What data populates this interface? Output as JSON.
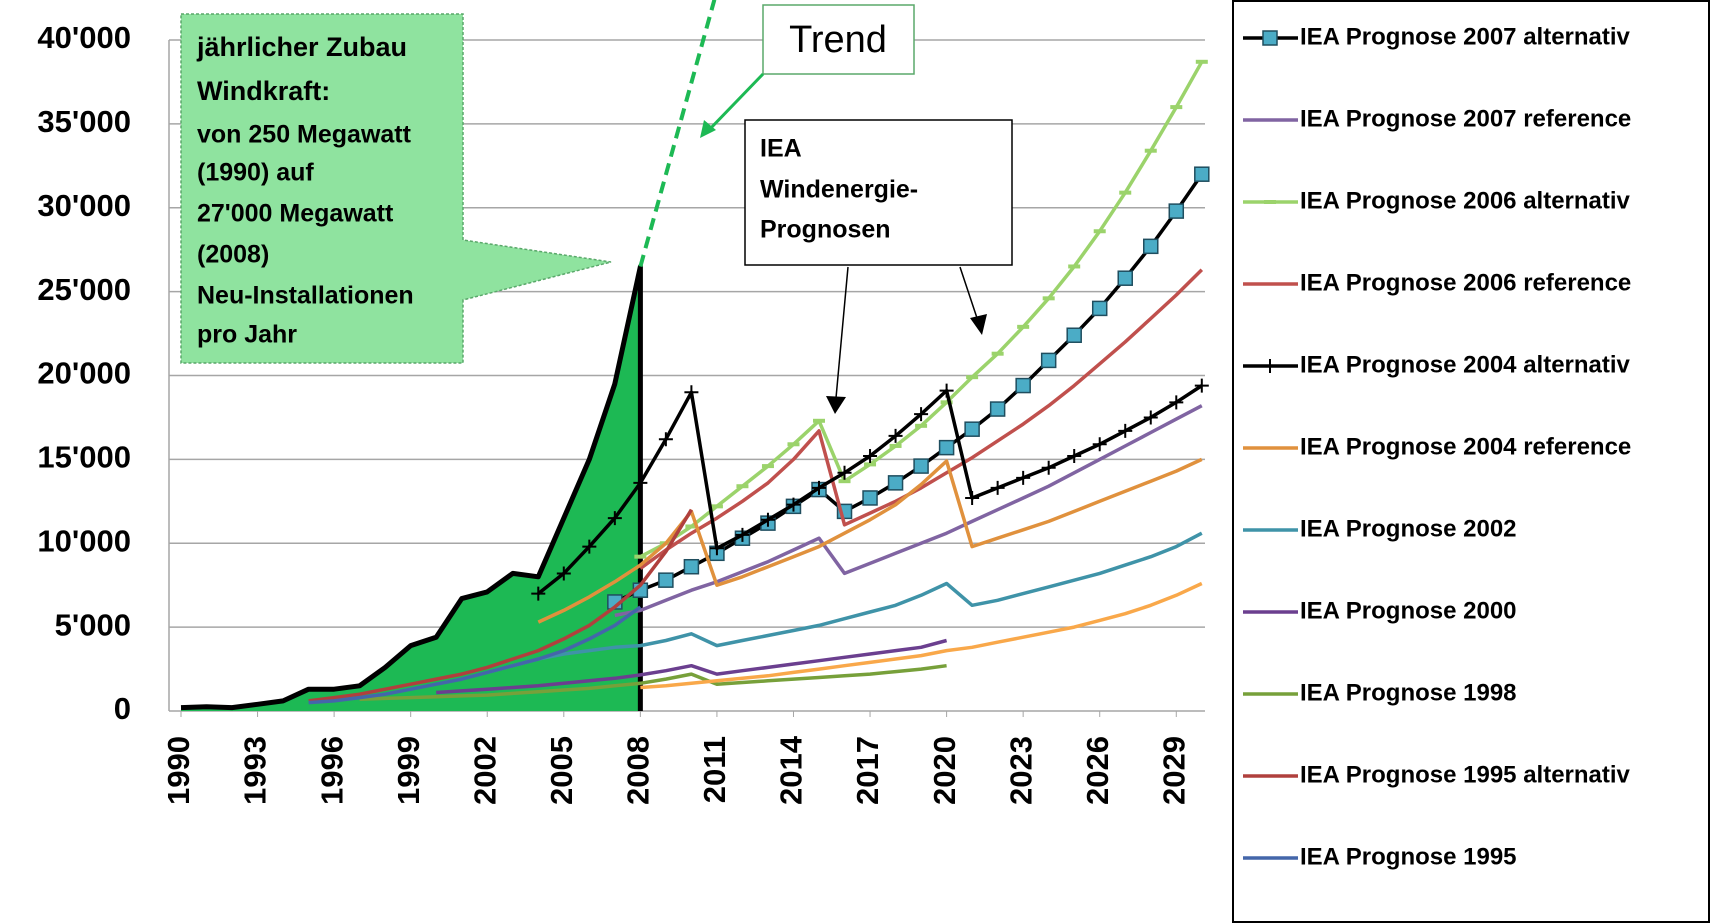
{
  "chart_data": {
    "type": "line",
    "xlim": [
      1990,
      2030.5
    ],
    "ylim": [
      0,
      40000
    ],
    "xticks": [
      1990,
      1993,
      1996,
      1999,
      2002,
      2005,
      2008,
      2011,
      2014,
      2017,
      2020,
      2023,
      2026,
      2029
    ],
    "yticks": [
      0,
      {
        "value": 5000,
        "label": "5'000"
      },
      {
        "value": 10000,
        "label": "10'000"
      },
      {
        "value": 15000,
        "label": "15'000"
      },
      {
        "value": 20000,
        "label": "20'000"
      },
      {
        "value": 25000,
        "label": "25'000"
      },
      {
        "value": 30000,
        "label": "30'000"
      },
      {
        "value": 35000,
        "label": "35'000"
      },
      {
        "value": 40000,
        "label": "40'000"
      }
    ],
    "grid": true,
    "legend": "right",
    "series": [
      {
        "name": "IEA Prognose 2007 alternativ",
        "color": "#000000",
        "marker": "square",
        "marker_color": "#4bacc6",
        "x": [
          2007,
          2008,
          2009,
          2010,
          2011,
          2012,
          2013,
          2014,
          2015,
          2016,
          2017,
          2018,
          2019,
          2020,
          2021,
          2022,
          2023,
          2024,
          2025,
          2026,
          2027,
          2028,
          2029,
          2030
        ],
        "values": [
          6500,
          7200,
          7800,
          8600,
          9400,
          10300,
          11200,
          12200,
          13200,
          11900,
          12700,
          13600,
          14600,
          15700,
          16800,
          18000,
          19400,
          20900,
          22400,
          24000,
          25800,
          27700,
          29800,
          32000
        ]
      },
      {
        "name": "IEA Prognose 2007 reference",
        "color": "#8064a2",
        "x": [
          2007,
          2008,
          2009,
          2010,
          2011,
          2012,
          2013,
          2014,
          2015,
          2016,
          2017,
          2018,
          2019,
          2020,
          2021,
          2022,
          2023,
          2024,
          2025,
          2026,
          2027,
          2028,
          2029,
          2030
        ],
        "values": [
          5700,
          6000,
          6600,
          7200,
          7700,
          8300,
          8900,
          9600,
          10300,
          8200,
          8800,
          9400,
          10000,
          10600,
          11300,
          12000,
          12700,
          13400,
          14200,
          15000,
          15800,
          16600,
          17400,
          18200
        ]
      },
      {
        "name": "IEA Prognose 2006 alternativ",
        "color": "#9bd36b",
        "marker": "dash",
        "x": [
          2008,
          2009,
          2010,
          2011,
          2012,
          2013,
          2014,
          2015,
          2016,
          2017,
          2018,
          2019,
          2020,
          2021,
          2022,
          2023,
          2024,
          2025,
          2026,
          2027,
          2028,
          2029,
          2030
        ],
        "values": [
          9200,
          10000,
          11000,
          12200,
          13400,
          14600,
          15900,
          17300,
          13700,
          14700,
          15800,
          17000,
          18400,
          19900,
          21300,
          22900,
          24600,
          26500,
          28600,
          30900,
          33400,
          36000,
          38700
        ]
      },
      {
        "name": "IEA Prognose 2006 reference",
        "color": "#c0504d",
        "x": [
          2008,
          2009,
          2010,
          2011,
          2012,
          2013,
          2014,
          2015,
          2016,
          2017,
          2018,
          2019,
          2020,
          2021,
          2022,
          2023,
          2024,
          2025,
          2026,
          2027,
          2028,
          2029,
          2030
        ],
        "values": [
          8500,
          9600,
          10600,
          11500,
          12500,
          13600,
          15000,
          16700,
          11100,
          11800,
          12500,
          13300,
          14200,
          15100,
          16100,
          17100,
          18200,
          19400,
          20700,
          22000,
          23400,
          24800,
          26300
        ]
      },
      {
        "name": "IEA Prognose 2004 alternativ",
        "color": "#000000",
        "marker": "plus",
        "x": [
          2004,
          2005,
          2006,
          2007,
          2008,
          2009,
          2010,
          2011,
          2012,
          2013,
          2014,
          2015,
          2016,
          2017,
          2018,
          2019,
          2020,
          2021,
          2022,
          2023,
          2024,
          2025,
          2026,
          2027,
          2028,
          2029,
          2030
        ],
        "values": [
          7000,
          8200,
          9800,
          11500,
          13600,
          16200,
          19000,
          9700,
          10500,
          11400,
          12300,
          13300,
          14200,
          15200,
          16400,
          17700,
          19100,
          12700,
          13300,
          13900,
          14500,
          15200,
          15900,
          16700,
          17500,
          18400,
          19400
        ]
      },
      {
        "name": "IEA Prognose 2004 reference",
        "color": "#e0913d",
        "x": [
          2004,
          2005,
          2006,
          2007,
          2008,
          2009,
          2010,
          2011,
          2012,
          2013,
          2014,
          2015,
          2016,
          2017,
          2018,
          2019,
          2020,
          2021,
          2022,
          2023,
          2024,
          2025,
          2026,
          2027,
          2028,
          2029,
          2030
        ],
        "values": [
          5300,
          6000,
          6800,
          7700,
          8700,
          10000,
          11900,
          7500,
          8000,
          8600,
          9200,
          9800,
          10600,
          11400,
          12300,
          13500,
          14900,
          9800,
          10300,
          10800,
          11300,
          11900,
          12500,
          13100,
          13700,
          14300,
          15000
        ]
      },
      {
        "name": "IEA Prognose 2002",
        "color": "#3f93a8",
        "x": [
          2002,
          2003,
          2004,
          2005,
          2006,
          2007,
          2008,
          2009,
          2010,
          2011,
          2012,
          2013,
          2014,
          2015,
          2016,
          2017,
          2018,
          2019,
          2020,
          2021,
          2022,
          2023,
          2024,
          2025,
          2026,
          2027,
          2028,
          2029,
          2030
        ],
        "values": [
          2300,
          2700,
          3100,
          3400,
          3600,
          3800,
          3900,
          4200,
          4600,
          3900,
          4200,
          4500,
          4800,
          5100,
          5500,
          5900,
          6300,
          6900,
          7600,
          6300,
          6600,
          7000,
          7400,
          7800,
          8200,
          8700,
          9200,
          9800,
          10600
        ]
      },
      {
        "name": "IEA Prognose 2000",
        "color": "#6b3f8f",
        "x": [
          2000,
          2001,
          2002,
          2003,
          2004,
          2005,
          2006,
          2007,
          2008,
          2009,
          2010,
          2011,
          2012,
          2013,
          2014,
          2015,
          2016,
          2017,
          2018,
          2019,
          2020
        ],
        "values": [
          1100,
          1200,
          1300,
          1400,
          1500,
          1650,
          1800,
          1950,
          2150,
          2400,
          2700,
          2200,
          2400,
          2600,
          2800,
          3000,
          3200,
          3400,
          3600,
          3800,
          4200
        ]
      },
      {
        "name": "IEA Prognose 1998",
        "color": "#77a03a",
        "x": [
          1997,
          1998,
          1999,
          2000,
          2001,
          2002,
          2003,
          2004,
          2005,
          2006,
          2007,
          2008,
          2009,
          2010,
          2011,
          2012,
          2013,
          2014,
          2015,
          2016,
          2017,
          2018,
          2019,
          2020
        ],
        "values": [
          700,
          750,
          800,
          850,
          900,
          950,
          1050,
          1150,
          1250,
          1350,
          1500,
          1650,
          1900,
          2200,
          1600,
          1700,
          1800,
          1900,
          2000,
          2100,
          2200,
          2350,
          2500,
          2700
        ]
      },
      {
        "name": "IEA Prognose 1995 alternativ",
        "color": "#b0403d",
        "x": [
          1995,
          1996,
          1997,
          1998,
          1999,
          2000,
          2001,
          2002,
          2003,
          2004,
          2005,
          2006,
          2007,
          2008,
          2009,
          2010
        ],
        "values": [
          600,
          800,
          1000,
          1300,
          1600,
          1900,
          2200,
          2600,
          3100,
          3600,
          4300,
          5100,
          6200,
          7500,
          9500,
          12000
        ]
      },
      {
        "name": "IEA Prognose 1995",
        "color": "#4466aa",
        "x": [
          1995,
          1996,
          1997,
          1998,
          1999,
          2000,
          2001,
          2002,
          2003,
          2004,
          2005,
          2006,
          2007,
          2008
        ],
        "values": [
          500,
          600,
          800,
          1000,
          1300,
          1600,
          1900,
          2300,
          2700,
          3100,
          3600,
          4300,
          5100,
          6200
        ]
      },
      {
        "color": "#f9a84a",
        "x": [
          2008,
          2009,
          2010,
          2011,
          2012,
          2013,
          2014,
          2015,
          2016,
          2017,
          2018,
          2019,
          2020,
          2021,
          2022,
          2023,
          2024,
          2025,
          2026,
          2027,
          2028,
          2029,
          2030
        ],
        "values": [
          1400,
          1500,
          1650,
          1800,
          1950,
          2100,
          2300,
          2500,
          2700,
          2900,
          3100,
          3300,
          3600,
          3800,
          4100,
          4400,
          4700,
          5000,
          5400,
          5800,
          6300,
          6900,
          7600
        ]
      },
      {
        "kind": "area",
        "color": "#1db954",
        "x": [
          1990,
          1991,
          1992,
          1993,
          1994,
          1995,
          1996,
          1997,
          1998,
          1999,
          2000,
          2001,
          2002,
          2003,
          2004,
          2005,
          2006,
          2007,
          2008
        ],
        "values": [
          200,
          250,
          200,
          400,
          600,
          1300,
          1300,
          1500,
          2600,
          3900,
          4400,
          6700,
          7100,
          8200,
          8000,
          11500,
          15000,
          19500,
          26500
        ]
      },
      {
        "kind": "dashed",
        "color": "#1db954",
        "x": [
          2008,
          2010.9
        ],
        "values": [
          26500,
          42400
        ]
      }
    ],
    "annotations": {
      "callout": [
        "jährlicher Zubau",
        "Windkraft:",
        "von 250 Megawatt",
        "(1990) auf",
        "27'000 Megawatt",
        "(2008)",
        "Neu-Installationen",
        "pro  Jahr"
      ],
      "trend": "Trend",
      "iea": [
        "IEA",
        "Windenergie-",
        "Prognosen"
      ]
    }
  }
}
